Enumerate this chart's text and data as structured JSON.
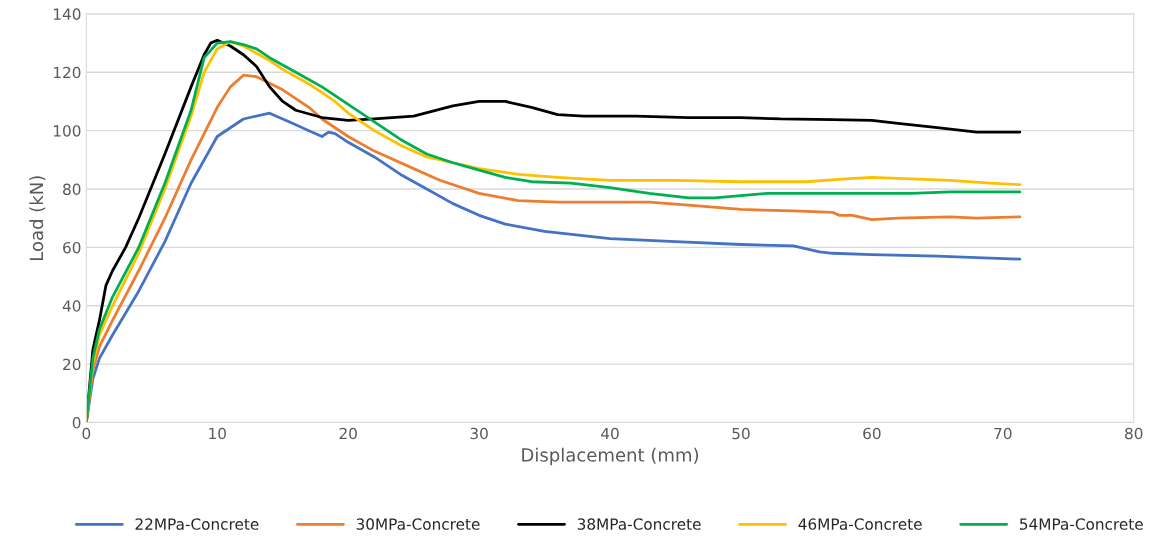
{
  "chart_data": {
    "type": "line",
    "xlabel": "Displacement (mm)",
    "ylabel": "Load (kN)",
    "xlim": [
      0,
      80
    ],
    "xticks": [
      0,
      10,
      20,
      30,
      40,
      50,
      60,
      70,
      80
    ],
    "ylim": [
      0,
      140
    ],
    "yticks": [
      0,
      20,
      40,
      60,
      80,
      100,
      120,
      140
    ],
    "grid": "y",
    "legend": "bottom",
    "marker": "none",
    "line_style": "solid",
    "series": [
      {
        "name": "22MPa-Concrete",
        "color": "#4472c4",
        "x": [
          0,
          0.5,
          1,
          2,
          4,
          6,
          8,
          10,
          12,
          14,
          16,
          17,
          18,
          18.5,
          19,
          20,
          22,
          24,
          26,
          28,
          30,
          32,
          35,
          40,
          45,
          50,
          54,
          56,
          57,
          60,
          65,
          68,
          71.3
        ],
        "values": [
          0,
          15,
          22,
          30,
          45,
          62,
          82,
          98,
          104,
          106,
          102,
          100,
          98,
          99.5,
          99,
          96,
          91,
          85,
          80,
          75,
          71,
          68,
          65.5,
          63,
          62,
          61,
          60.5,
          58.5,
          58,
          57.5,
          57,
          56.5,
          56
        ]
      },
      {
        "name": "30MPa-Concrete",
        "color": "#ed7d31",
        "x": [
          0,
          0.5,
          1,
          2,
          4,
          6,
          8,
          10,
          11,
          12,
          13,
          15,
          17,
          18,
          20,
          22,
          25,
          27,
          30,
          33,
          36,
          40,
          43,
          46,
          50,
          54,
          57,
          57.5,
          58.5,
          60,
          62,
          66,
          68,
          71.3
        ],
        "values": [
          0,
          18,
          26,
          35,
          52,
          70,
          90,
          108,
          115,
          119,
          118.5,
          114,
          108,
          104,
          98,
          93,
          87,
          83,
          78.5,
          76,
          75.5,
          75.5,
          75.5,
          74.5,
          73,
          72.5,
          72,
          71,
          71,
          69.5,
          70,
          70.5,
          70,
          70.5
        ]
      },
      {
        "name": "38MPa-Concrete",
        "color": "#000000",
        "x": [
          0,
          0.5,
          1,
          1.5,
          2,
          3,
          4,
          6,
          8,
          9,
          9.5,
          10,
          11,
          12,
          13,
          14,
          15,
          16,
          18,
          20,
          22,
          25,
          28,
          30,
          32,
          34,
          36,
          38,
          42,
          46,
          50,
          53,
          57,
          60,
          62,
          65,
          68,
          71.3
        ],
        "values": [
          0,
          25,
          35,
          47,
          52,
          60,
          70,
          92,
          115,
          126,
          130,
          131,
          129,
          126,
          122,
          115,
          110,
          107,
          104.5,
          103.5,
          104,
          105,
          108.5,
          110,
          110,
          108,
          105.5,
          105,
          105,
          104.5,
          104.5,
          104,
          103.8,
          103.5,
          102.5,
          101,
          99.5,
          99.5
        ]
      },
      {
        "name": "46MPa-Concrete",
        "color": "#ffc000",
        "x": [
          0,
          0.5,
          1,
          2,
          4,
          6,
          8,
          9,
          10,
          11,
          12,
          14,
          15,
          17,
          19,
          20,
          22,
          24,
          26,
          28,
          30,
          33,
          36,
          40,
          45,
          50,
          55,
          58,
          60,
          63,
          66,
          69,
          71.3
        ],
        "values": [
          0,
          20,
          30,
          40,
          58,
          80,
          105,
          120,
          128,
          130.5,
          129,
          124,
          121,
          116,
          110,
          106,
          100,
          95,
          91,
          89,
          87,
          85,
          84,
          83,
          83,
          82.5,
          82.5,
          83.5,
          84,
          83.5,
          83,
          82,
          81.5
        ]
      },
      {
        "name": "54MPa-Concrete",
        "color": "#00b050",
        "x": [
          0,
          0.5,
          1,
          2,
          4,
          6,
          8,
          9,
          10,
          11,
          12,
          13,
          14,
          16,
          18,
          20,
          22,
          24,
          26,
          28,
          30,
          32,
          34,
          37,
          40,
          43,
          46,
          48,
          52,
          56,
          60,
          63,
          66,
          69,
          71.3
        ],
        "values": [
          0,
          22,
          32,
          43,
          60,
          82,
          107,
          125,
          130,
          130.5,
          129.5,
          128,
          125,
          120,
          115,
          109,
          103,
          97,
          92,
          89,
          86.5,
          84,
          82.5,
          82,
          80.5,
          78.5,
          77,
          77,
          78.5,
          78.5,
          78.5,
          78.5,
          79,
          79,
          79
        ]
      }
    ]
  }
}
